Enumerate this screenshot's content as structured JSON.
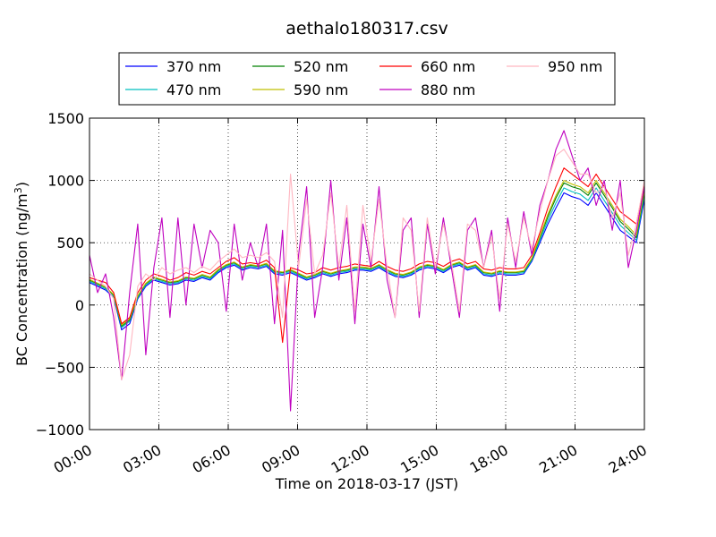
{
  "chart_data": {
    "type": "line",
    "title": "aethalo180317.csv",
    "xlabel": "Time on 2018-03-17 (JST)",
    "ylabel_main": "BC Concentration (ng/m",
    "ylabel_sup": "3",
    "ylabel_end": ")",
    "xlim": [
      "00:00",
      "24:00"
    ],
    "ylim": [
      -1000,
      1500
    ],
    "x_ticks": [
      "00:00",
      "03:00",
      "06:00",
      "09:00",
      "12:00",
      "15:00",
      "18:00",
      "21:00",
      "24:00"
    ],
    "y_ticks": [
      {
        "value": -1000,
        "label": "−1000"
      },
      {
        "value": -500,
        "label": "−500"
      },
      {
        "value": 0,
        "label": "0"
      },
      {
        "value": 500,
        "label": "500"
      },
      {
        "value": 1000,
        "label": "1000"
      },
      {
        "value": 1500,
        "label": "1500"
      }
    ],
    "grid": true,
    "legend_position": "top",
    "series": [
      {
        "name": "370 nm",
        "color": "#0000ff",
        "values": [
          180,
          150,
          120,
          60,
          -200,
          -150,
          50,
          150,
          200,
          180,
          160,
          170,
          200,
          190,
          220,
          200,
          260,
          300,
          320,
          280,
          300,
          290,
          310,
          250,
          240,
          260,
          230,
          200,
          220,
          250,
          230,
          250,
          260,
          280,
          280,
          270,
          300,
          260,
          230,
          220,
          240,
          280,
          300,
          290,
          260,
          300,
          320,
          280,
          300,
          240,
          230,
          250,
          240,
          240,
          250,
          350,
          500,
          650,
          780,
          900,
          870,
          850,
          800,
          900,
          800,
          700,
          600,
          550,
          500,
          850
        ]
      },
      {
        "name": "470 nm",
        "color": "#00bfbf",
        "values": [
          190,
          160,
          130,
          70,
          -180,
          -130,
          60,
          160,
          210,
          190,
          170,
          180,
          210,
          200,
          230,
          210,
          270,
          310,
          330,
          290,
          310,
          300,
          320,
          260,
          250,
          270,
          240,
          210,
          230,
          260,
          240,
          260,
          270,
          290,
          290,
          280,
          310,
          270,
          240,
          230,
          250,
          290,
          310,
          300,
          270,
          310,
          330,
          290,
          310,
          250,
          240,
          260,
          250,
          250,
          260,
          360,
          520,
          680,
          820,
          940,
          910,
          890,
          840,
          940,
          840,
          740,
          640,
          580,
          520,
          880
        ]
      },
      {
        "name": "520 nm",
        "color": "#008000",
        "values": [
          200,
          170,
          140,
          80,
          -170,
          -120,
          70,
          170,
          220,
          200,
          180,
          190,
          220,
          210,
          240,
          220,
          280,
          320,
          340,
          300,
          320,
          310,
          330,
          270,
          260,
          280,
          250,
          220,
          240,
          270,
          250,
          270,
          280,
          300,
          300,
          290,
          320,
          280,
          250,
          240,
          260,
          300,
          320,
          310,
          280,
          320,
          340,
          300,
          320,
          260,
          250,
          270,
          260,
          260,
          270,
          370,
          540,
          710,
          860,
          980,
          950,
          930,
          880,
          980,
          880,
          780,
          670,
          610,
          540,
          910
        ]
      },
      {
        "name": "590 nm",
        "color": "#bfbf00",
        "values": [
          205,
          175,
          145,
          85,
          -160,
          -110,
          75,
          175,
          225,
          205,
          185,
          195,
          225,
          215,
          245,
          225,
          285,
          325,
          345,
          305,
          325,
          315,
          335,
          275,
          265,
          285,
          255,
          225,
          245,
          275,
          255,
          275,
          285,
          305,
          305,
          295,
          325,
          285,
          255,
          245,
          265,
          305,
          325,
          315,
          285,
          325,
          345,
          305,
          325,
          265,
          255,
          275,
          265,
          265,
          275,
          375,
          550,
          730,
          880,
          1000,
          970,
          950,
          900,
          1000,
          900,
          800,
          690,
          630,
          560,
          930
        ]
      },
      {
        "name": "660 nm",
        "color": "#ff0000",
        "values": [
          220,
          200,
          180,
          100,
          -150,
          -100,
          100,
          200,
          250,
          230,
          200,
          220,
          260,
          240,
          270,
          250,
          300,
          350,
          380,
          330,
          340,
          330,
          360,
          300,
          -300,
          300,
          280,
          250,
          260,
          300,
          280,
          300,
          310,
          330,
          320,
          310,
          350,
          310,
          280,
          270,
          290,
          330,
          350,
          340,
          310,
          350,
          370,
          330,
          350,
          290,
          280,
          300,
          290,
          290,
          300,
          400,
          580,
          780,
          950,
          1100,
          1050,
          1000,
          950,
          1050,
          950,
          850,
          750,
          700,
          650,
          980
        ]
      },
      {
        "name": "880 nm",
        "color": "#bf00bf",
        "values": [
          400,
          100,
          250,
          -100,
          -600,
          100,
          650,
          -400,
          300,
          700,
          -100,
          700,
          0,
          650,
          300,
          600,
          500,
          -50,
          650,
          200,
          500,
          300,
          650,
          -150,
          600,
          -850,
          400,
          950,
          -100,
          300,
          1000,
          200,
          700,
          -150,
          650,
          300,
          950,
          200,
          -100,
          600,
          700,
          -100,
          650,
          250,
          700,
          300,
          -100,
          600,
          700,
          300,
          600,
          -50,
          700,
          300,
          750,
          400,
          800,
          1000,
          1250,
          1400,
          1200,
          1000,
          1100,
          800,
          1000,
          600,
          1000,
          300,
          600,
          950
        ]
      },
      {
        "name": "950 nm",
        "color": "#ffb6c1",
        "values": [
          250,
          200,
          150,
          50,
          -600,
          -400,
          150,
          250,
          200,
          300,
          250,
          280,
          300,
          260,
          310,
          280,
          350,
          400,
          450,
          380,
          400,
          380,
          420,
          350,
          -100,
          1050,
          300,
          850,
          250,
          400,
          900,
          300,
          800,
          -50,
          800,
          350,
          850,
          300,
          -100,
          700,
          600,
          -50,
          700,
          300,
          650,
          350,
          -50,
          650,
          600,
          300,
          550,
          50,
          650,
          350,
          700,
          450,
          750,
          1000,
          1200,
          1250,
          1150,
          1050,
          1050,
          900,
          950,
          700,
          900,
          400,
          650,
          1000
        ]
      }
    ]
  }
}
